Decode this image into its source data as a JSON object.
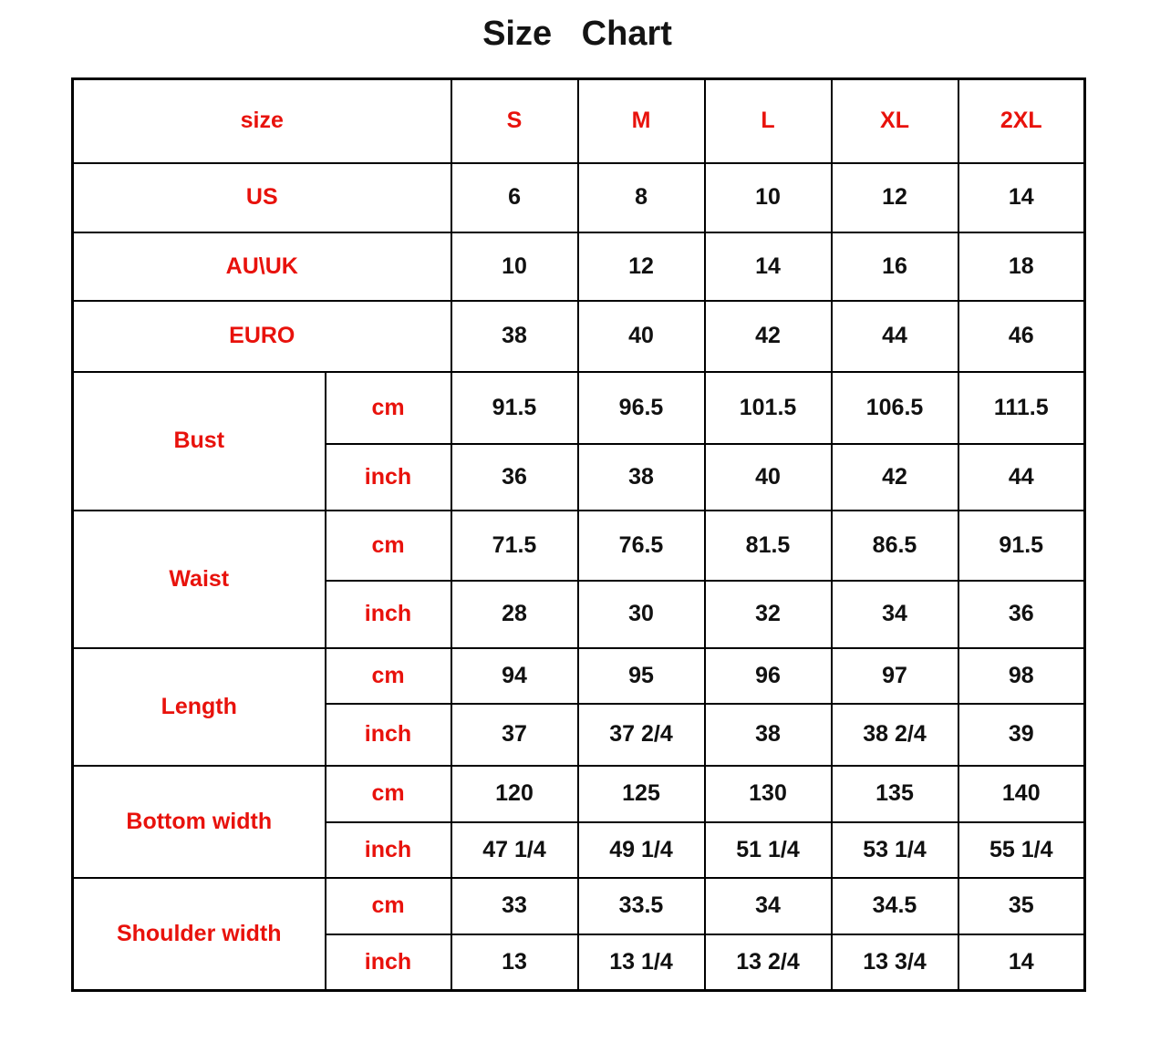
{
  "title": "Size Chart",
  "colors": {
    "label_red": "#e8120c",
    "value_black": "#111111",
    "border_black": "#000000",
    "background": "#ffffff"
  },
  "table": {
    "header_label": "size",
    "size_columns": [
      "S",
      "M",
      "L",
      "XL",
      "2XL"
    ],
    "unit_labels": {
      "cm": "cm",
      "inch": "inch"
    },
    "simple_rows": [
      {
        "label": "US",
        "values": [
          "6",
          "8",
          "10",
          "12",
          "14"
        ]
      },
      {
        "label": "AU\\UK",
        "values": [
          "10",
          "12",
          "14",
          "16",
          "18"
        ]
      },
      {
        "label": "EURO",
        "values": [
          "38",
          "40",
          "42",
          "44",
          "46"
        ]
      }
    ],
    "measurement_rows": [
      {
        "label": "Bust",
        "cm": [
          "91.5",
          "96.5",
          "101.5",
          "106.5",
          "111.5"
        ],
        "inch": [
          "36",
          "38",
          "40",
          "42",
          "44"
        ]
      },
      {
        "label": "Waist",
        "cm": [
          "71.5",
          "76.5",
          "81.5",
          "86.5",
          "91.5"
        ],
        "inch": [
          "28",
          "30",
          "32",
          "34",
          "36"
        ]
      },
      {
        "label": "Length",
        "cm": [
          "94",
          "95",
          "96",
          "97",
          "98"
        ],
        "inch": [
          "37",
          "37 2/4",
          "38",
          "38 2/4",
          "39"
        ]
      },
      {
        "label": "Bottom width",
        "cm": [
          "120",
          "125",
          "130",
          "135",
          "140"
        ],
        "inch": [
          "47 1/4",
          "49 1/4",
          "51 1/4",
          "53 1/4",
          "55 1/4"
        ]
      },
      {
        "label": "Shoulder width",
        "cm": [
          "33",
          "33.5",
          "34",
          "34.5",
          "35"
        ],
        "inch": [
          "13",
          "13 1/4",
          "13 2/4",
          "13 3/4",
          "14"
        ]
      }
    ]
  }
}
